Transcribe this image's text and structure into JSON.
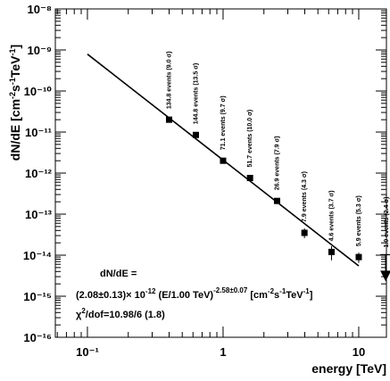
{
  "chart_data": {
    "type": "scatter",
    "title": "",
    "xlabel": "energy [TeV]",
    "ylabel": "dN/dE [cm⁻²s⁻¹TeV⁻¹]",
    "xscale": "log",
    "yscale": "log",
    "xlim": [
      0.058,
      16
    ],
    "ylim": [
      1e-16,
      1e-08
    ],
    "x_tick_labels": [
      "10⁻¹",
      "1",
      "10"
    ],
    "y_tick_labels": [
      "10⁻¹⁶",
      "10⁻¹⁵",
      "10⁻¹⁴",
      "10⁻¹³",
      "10⁻¹²",
      "10⁻¹¹",
      "10⁻¹⁰",
      "10⁻⁹",
      "10⁻⁸"
    ],
    "points": [
      {
        "x": 0.4,
        "y": 2e-11,
        "yerr_low": 1.7e-11,
        "yerr_high": 2.3e-11,
        "label": "134.8 events (9.0 σ)"
      },
      {
        "x": 0.63,
        "y": 8.5e-12,
        "yerr_low": 7.3e-12,
        "yerr_high": 9.8e-12,
        "label": "144.8 events (13.5 σ)"
      },
      {
        "x": 1.0,
        "y": 2e-12,
        "yerr_low": 1.75e-12,
        "yerr_high": 2.3e-12,
        "label": "71.1 events (9.7 σ)"
      },
      {
        "x": 1.58,
        "y": 7.6e-13,
        "yerr_low": 6.6e-13,
        "yerr_high": 8.8e-13,
        "label": "51.7 events (10.0 σ)"
      },
      {
        "x": 2.5,
        "y": 2.1e-13,
        "yerr_low": 1.8e-13,
        "yerr_high": 2.45e-13,
        "label": "26.9 events (7.9 σ)"
      },
      {
        "x": 3.98,
        "y": 3.5e-14,
        "yerr_low": 2.6e-14,
        "yerr_high": 4.5e-14,
        "label": "7.9 events (4.3 σ)"
      },
      {
        "x": 6.3,
        "y": 1.2e-14,
        "yerr_low": 7.5e-15,
        "yerr_high": 1.65e-14,
        "label": "4.6 events (3.7 σ)"
      },
      {
        "x": 10.0,
        "y": 9e-15,
        "yerr_low": 6.5e-15,
        "yerr_high": 1.15e-14,
        "label": "5.9 events (5.3 σ)"
      }
    ],
    "upper_limits": [
      {
        "x": 15.8,
        "y": 2.8e-15,
        "label": "1.0 events (2.4 σ)"
      }
    ],
    "fit": {
      "norm": 2.08e-12,
      "e0": 1.0,
      "index": 2.58,
      "x_range": [
        0.1,
        10.0
      ]
    },
    "annotation_lines": [
      "dN/dE =",
      "(2.08±0.13)× 10⁻¹² (E/1.00 TeV)^-2.58±0.07 [cm⁻²s⁻¹TeV⁻¹]",
      "χ²/dof=10.98/6 (1.8)"
    ],
    "grid": false,
    "legend": "none"
  },
  "colors": {
    "foreground": "#000000",
    "background": "#ffffff"
  }
}
